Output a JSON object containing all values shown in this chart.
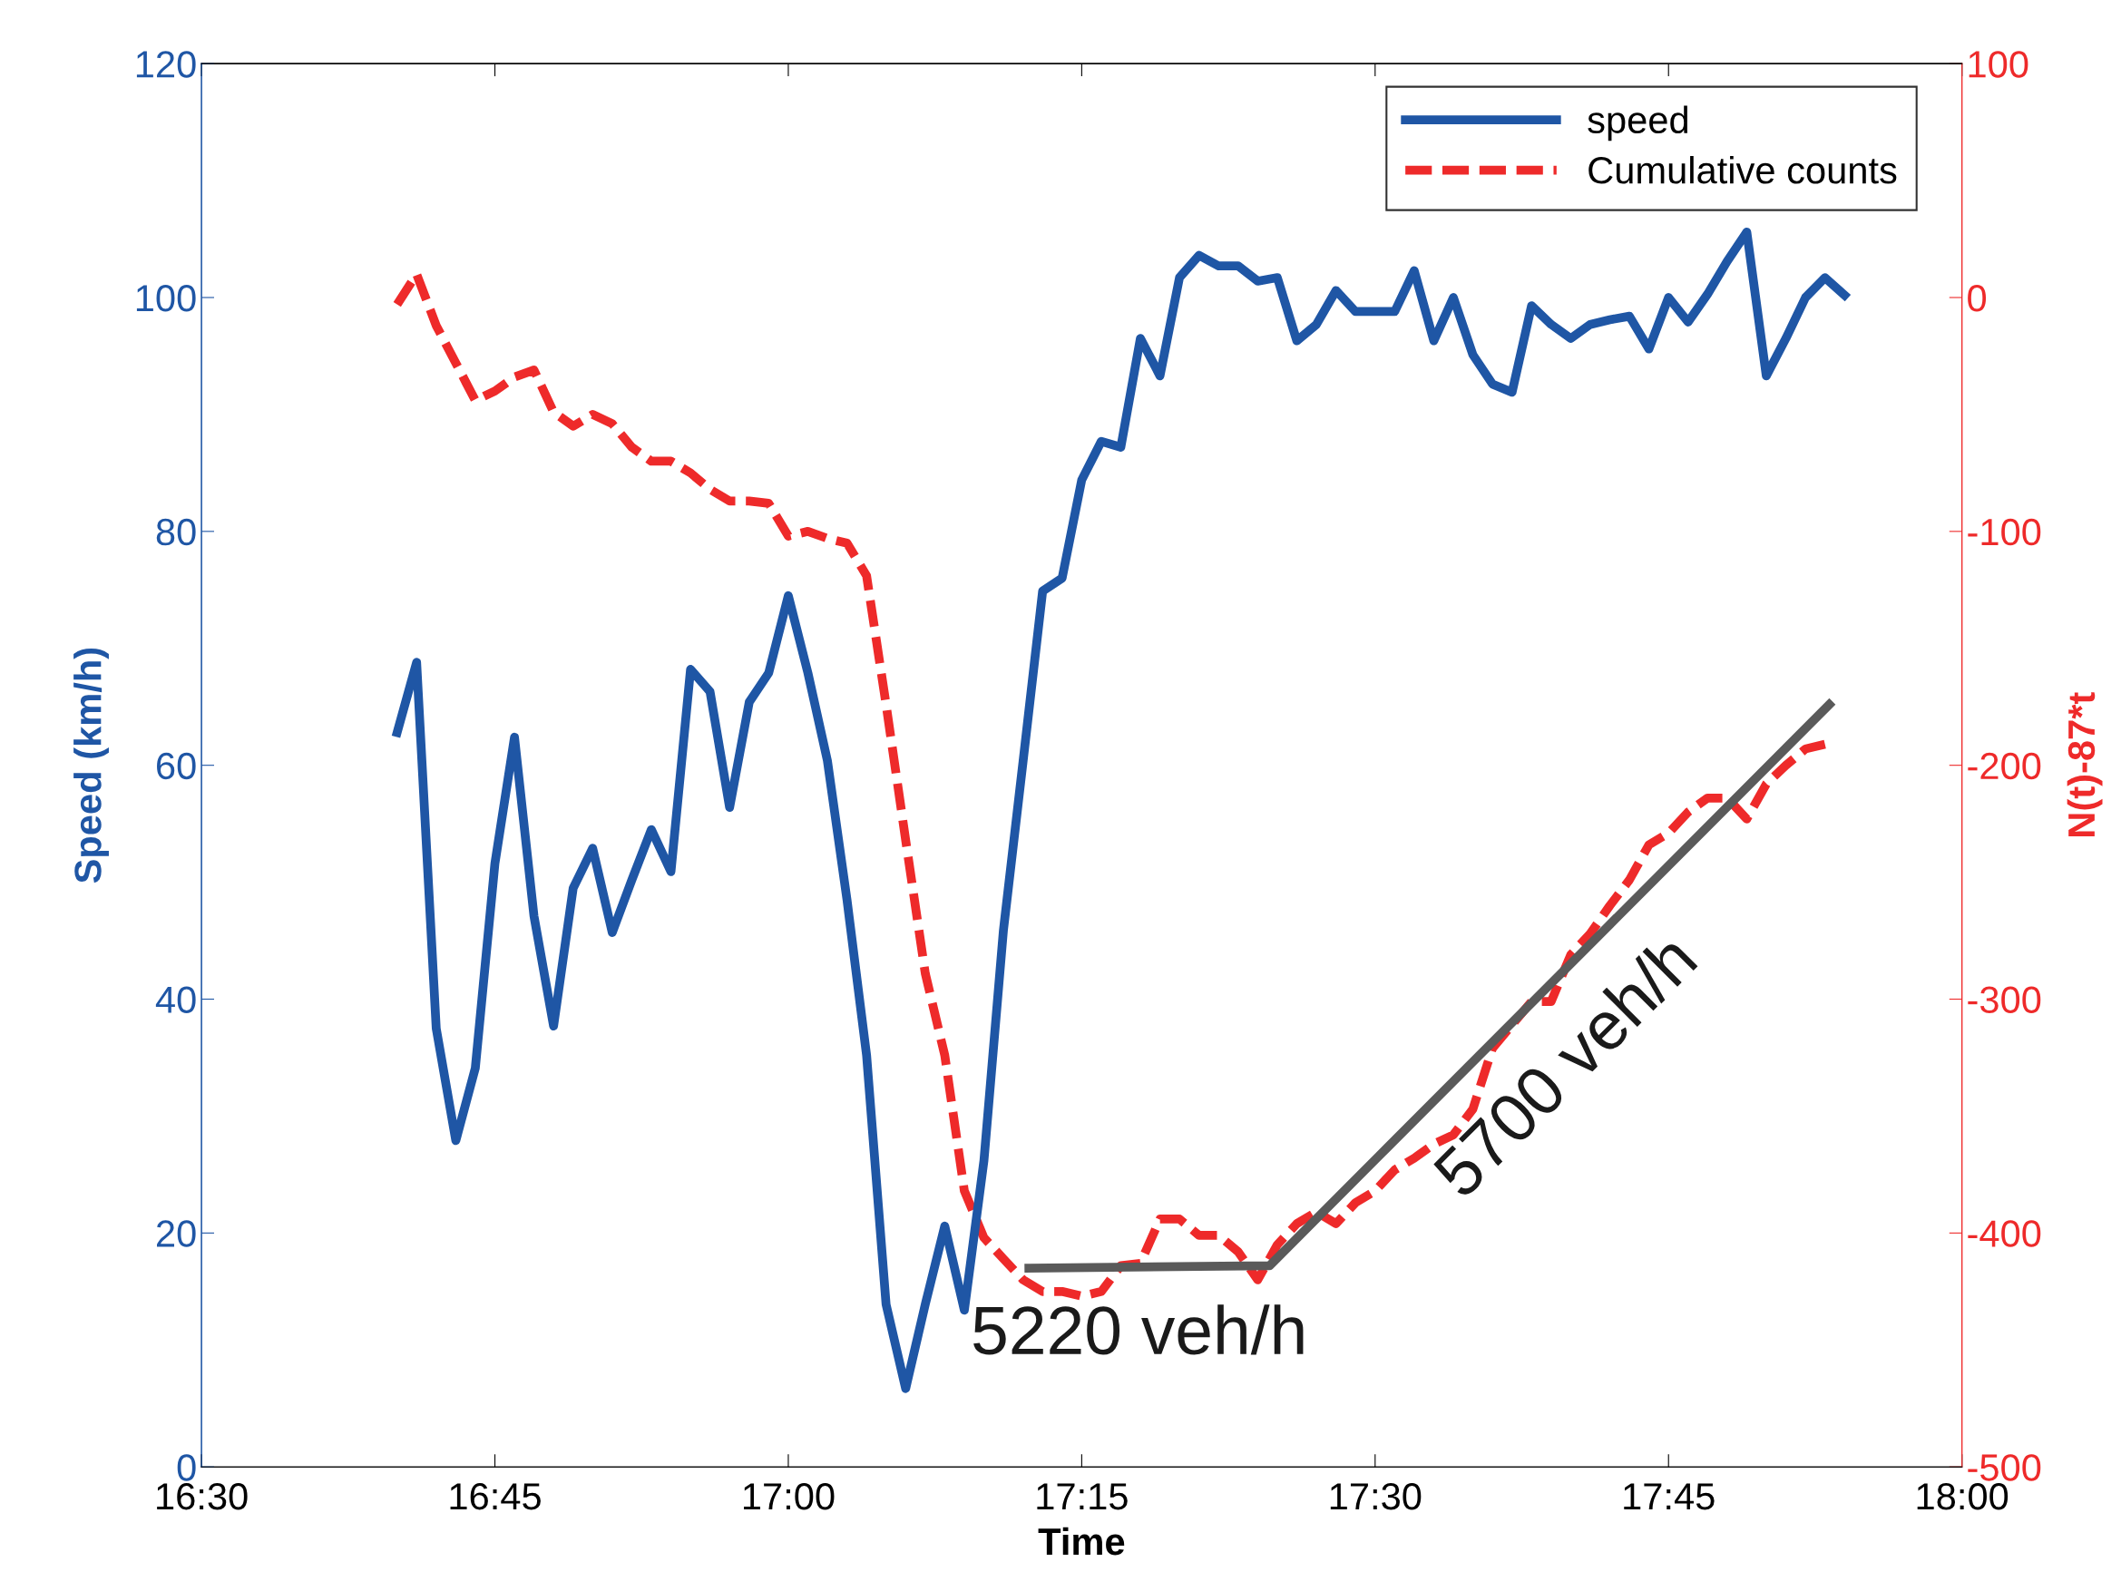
{
  "chart_data": {
    "type": "line",
    "xlabel": "Time",
    "ylabel": "Speed (km/h)",
    "y2label": "N(t)-87*t",
    "xlim": [
      16.5,
      18.0
    ],
    "xticks": [
      {
        "value": 16.5,
        "label": "16:30"
      },
      {
        "value": 16.75,
        "label": "16:45"
      },
      {
        "value": 17.0,
        "label": "17:00"
      },
      {
        "value": 17.25,
        "label": "17:15"
      },
      {
        "value": 17.5,
        "label": "17:30"
      },
      {
        "value": 17.75,
        "label": "17:45"
      },
      {
        "value": 18.0,
        "label": "18:00"
      }
    ],
    "ylim": [
      0,
      120
    ],
    "yticks": [
      0,
      20,
      40,
      60,
      80,
      100,
      120
    ],
    "y2lim": [
      -500,
      100
    ],
    "y2ticks": [
      -500,
      -400,
      -300,
      -200,
      -100,
      0,
      100
    ],
    "grid": false,
    "legend": "top right",
    "series": [
      {
        "name": "speed",
        "color": "#1f56a5",
        "line_style": "solid",
        "x": [
          16.6667,
          16.6833,
          16.7,
          16.7167,
          16.7333,
          16.75,
          16.7667,
          16.7833,
          16.8,
          16.8167,
          16.8333,
          16.85,
          16.8667,
          16.8833,
          16.9,
          16.9167,
          16.9333,
          16.95,
          16.9667,
          16.9833,
          17.0,
          17.0167,
          17.0333,
          17.05,
          17.0667,
          17.0833,
          17.1,
          17.1167,
          17.1333,
          17.15,
          17.1667,
          17.1833,
          17.2,
          17.2167,
          17.2333,
          17.25,
          17.2667,
          17.2833,
          17.3,
          17.3167,
          17.3333,
          17.35,
          17.3667,
          17.3833,
          17.4,
          17.4167,
          17.4333,
          17.45,
          17.4667,
          17.4833,
          17.5,
          17.5167,
          17.5333,
          17.55,
          17.5667,
          17.5833,
          17.6,
          17.6167,
          17.6333,
          17.65,
          17.6667,
          17.6833,
          17.7,
          17.7167,
          17.7333,
          17.75,
          17.7667,
          17.7833,
          17.8,
          17.8167,
          17.8333,
          17.85,
          17.8667,
          17.8833,
          17.9
        ],
        "values": [
          62.8,
          68.8,
          37.5,
          27.9,
          34.1,
          51.6,
          62.4,
          47.1,
          37.7,
          49.5,
          52.9,
          45.7,
          50.2,
          54.5,
          50.9,
          68.2,
          66.3,
          56.4,
          65.4,
          67.9,
          74.5,
          67.9,
          60.4,
          48.5,
          35.2,
          13.9,
          6.7,
          13.9,
          20.6,
          13.4,
          26.2,
          45.9,
          60.3,
          74.9,
          76.0,
          84.4,
          87.7,
          87.2,
          96.5,
          93.3,
          101.7,
          103.6,
          102.7,
          102.7,
          101.4,
          101.7,
          96.3,
          97.7,
          100.6,
          98.8,
          98.8,
          98.8,
          102.3,
          96.3,
          100,
          95.1,
          92.6,
          91.9,
          99.3,
          97.7,
          96.5,
          97.7,
          98.1,
          98.4,
          95.6,
          100,
          97.9,
          100.3,
          103.1,
          105.6,
          93.3,
          96.5,
          100,
          101.7,
          100.2
        ]
      },
      {
        "name": "Cumulative counts",
        "axis": "y2",
        "color": "#ee2a2a",
        "line_style": "dashed",
        "x": [
          16.6667,
          16.6833,
          16.7,
          16.7167,
          16.7333,
          16.75,
          16.7667,
          16.7833,
          16.8,
          16.8167,
          16.8333,
          16.85,
          16.8667,
          16.8833,
          16.9,
          16.9167,
          16.9333,
          16.95,
          16.9667,
          16.9833,
          17.0,
          17.0167,
          17.0333,
          17.05,
          17.0667,
          17.0833,
          17.1,
          17.1167,
          17.1333,
          17.15,
          17.1667,
          17.1833,
          17.2,
          17.2167,
          17.2333,
          17.25,
          17.2667,
          17.2833,
          17.3,
          17.3167,
          17.3333,
          17.35,
          17.3667,
          17.3833,
          17.4,
          17.4167,
          17.4333,
          17.45,
          17.4667,
          17.4833,
          17.5,
          17.5167,
          17.5333,
          17.55,
          17.5667,
          17.5833,
          17.6,
          17.6167,
          17.6333,
          17.65,
          17.6667,
          17.6833,
          17.7,
          17.7167,
          17.7333,
          17.75,
          17.7667,
          17.7833,
          17.8,
          17.8167,
          17.8333,
          17.85,
          17.8667,
          17.8833
        ],
        "values": [
          -3,
          10,
          -12,
          -28,
          -44,
          -40,
          -34,
          -31,
          -49,
          -55,
          -50,
          -54,
          -64,
          -70,
          -70,
          -75,
          -82,
          -87,
          -87,
          -88,
          -102,
          -100,
          -103,
          -105,
          -119,
          -174,
          -232,
          -289,
          -324,
          -382,
          -402,
          -411,
          -420,
          -425,
          -425,
          -427,
          -425,
          -414,
          -413,
          -394,
          -394,
          -401,
          -401,
          -408,
          -420,
          -405,
          -396,
          -391,
          -396,
          -387,
          -382,
          -373,
          -368,
          -362,
          -358,
          -347,
          -321,
          -311,
          -301,
          -301,
          -281,
          -272,
          -260,
          -249,
          -234,
          -229,
          -220,
          -214,
          -214,
          -223,
          -208,
          -200,
          -193,
          -191
        ]
      },
      {
        "axis": "y2",
        "color": "#5a5a5a",
        "line_style": "solid",
        "x": [
          17.205,
          17.41,
          17.887
        ],
        "values": [
          -415,
          -414,
          -174
        ]
      }
    ],
    "annotations": [
      "5220 veh/h",
      "5700 veh/h"
    ]
  }
}
